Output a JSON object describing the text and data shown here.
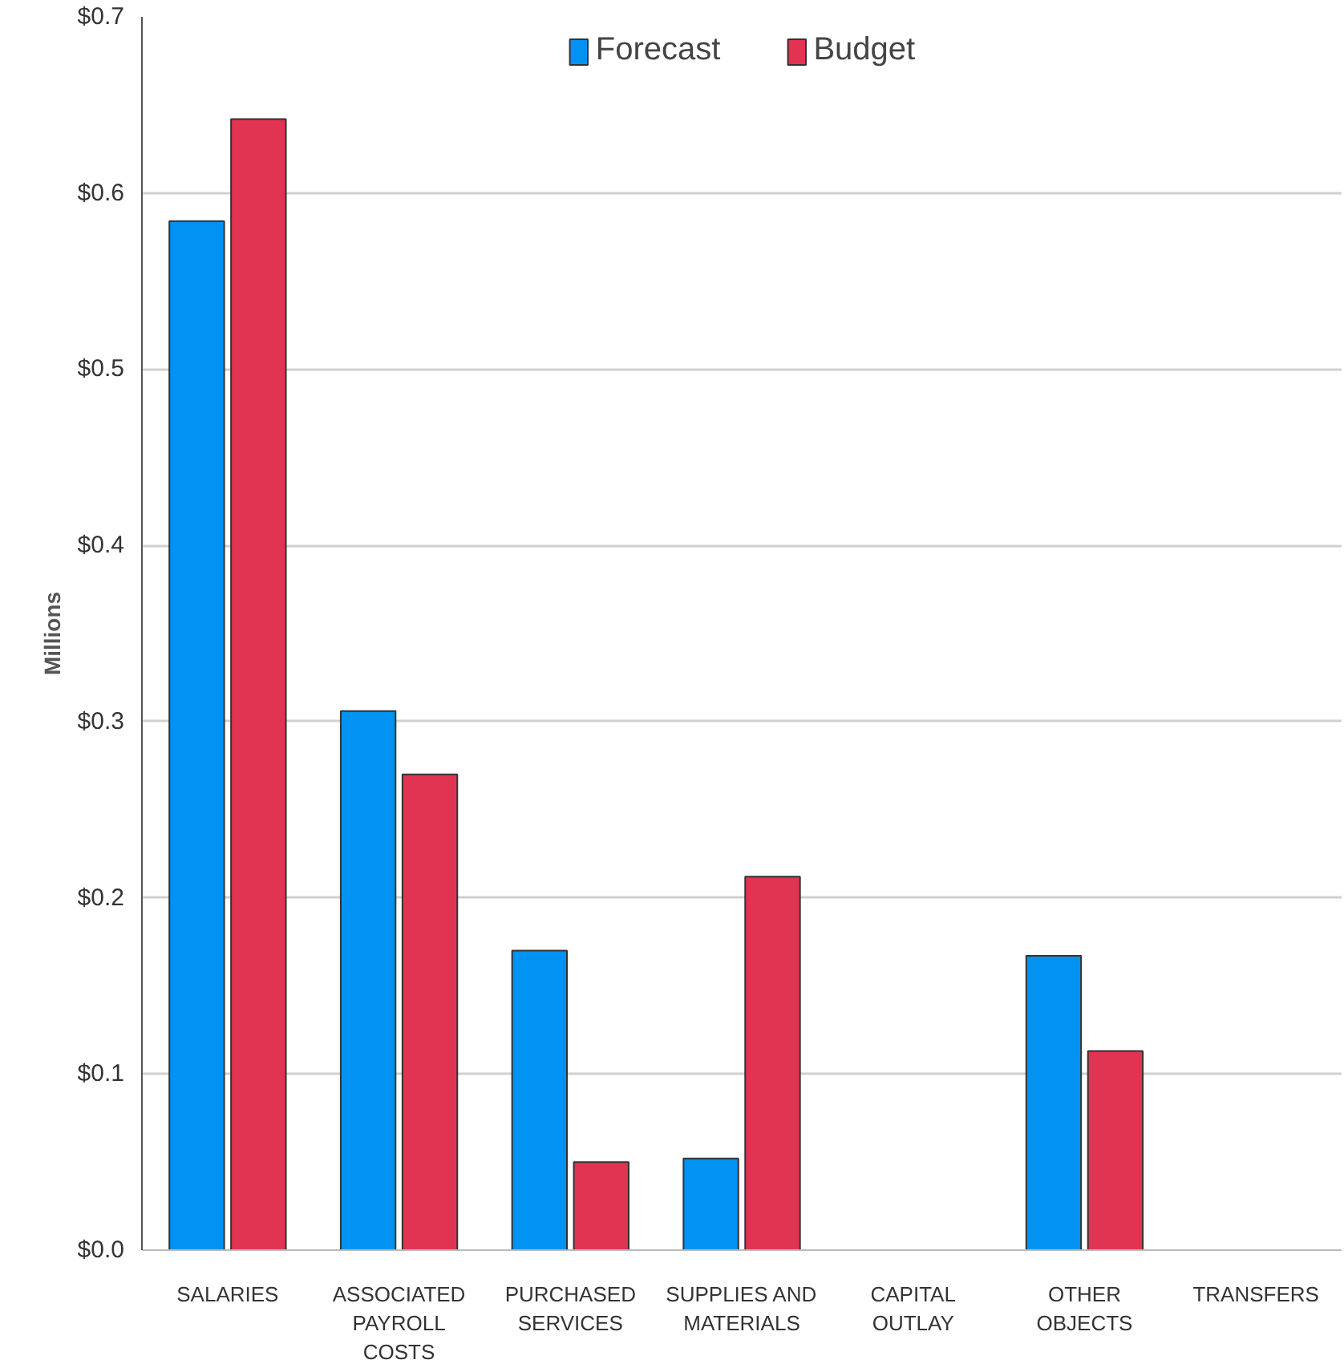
{
  "chart_data": {
    "type": "bar",
    "ylabel": "Millions",
    "categories": [
      "SALARIES",
      "ASSOCIATED PAYROLL COSTS",
      "PURCHASED SERVICES",
      "SUPPLIES AND MATERIALS",
      "CAPITAL OUTLAY",
      "OTHER OBJECTS",
      "TRANSFERS"
    ],
    "series": [
      {
        "name": "Forecast",
        "color": "#0292f2",
        "values": [
          0.584,
          0.306,
          0.17,
          0.052,
          0,
          0.167,
          0
        ]
      },
      {
        "name": "Budget",
        "color": "#e03452",
        "values": [
          0.642,
          0.27,
          0.05,
          0.212,
          0,
          0.113,
          0
        ]
      }
    ],
    "ylim": [
      0,
      0.7
    ],
    "yticks": [
      {
        "value": 0,
        "label": "$0.0"
      },
      {
        "value": 0.1,
        "label": "$0.1"
      },
      {
        "value": 0.2,
        "label": "$0.2"
      },
      {
        "value": 0.3,
        "label": "$0.3"
      },
      {
        "value": 0.4,
        "label": "$0.4"
      },
      {
        "value": 0.5,
        "label": "$0.5"
      },
      {
        "value": 0.6,
        "label": "$0.6"
      },
      {
        "value": 0.7,
        "label": "$0.7"
      }
    ],
    "grid": "y",
    "legend": "top"
  }
}
